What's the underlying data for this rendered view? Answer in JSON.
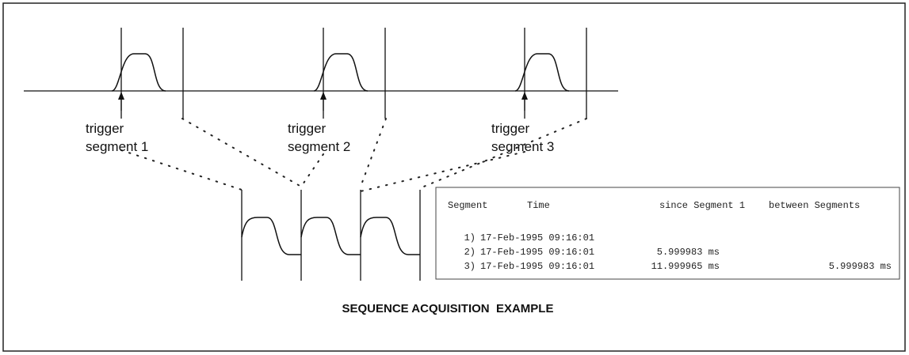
{
  "title": "SEQUENCE ACQUISITION  EXAMPLE",
  "triggers": [
    {
      "line1": "trigger",
      "line2": "segment 1"
    },
    {
      "line1": "trigger",
      "line2": "segment 2"
    },
    {
      "line1": "trigger",
      "line2": "segment 3"
    }
  ],
  "table": {
    "header": [
      "Segment",
      "Time",
      "since Segment 1",
      "between Segments"
    ],
    "rows": [
      {
        "index": "1)",
        "time": "17-Feb-1995 09:16:01"
      },
      {
        "index": "2)",
        "time": "17-Feb-1995 09:16:01",
        "since": "5.999983 ms"
      },
      {
        "index": "3)",
        "time": "17-Feb-1995 09:16:01",
        "since": "11.999965 ms",
        "between": "5.999983 ms"
      }
    ]
  }
}
